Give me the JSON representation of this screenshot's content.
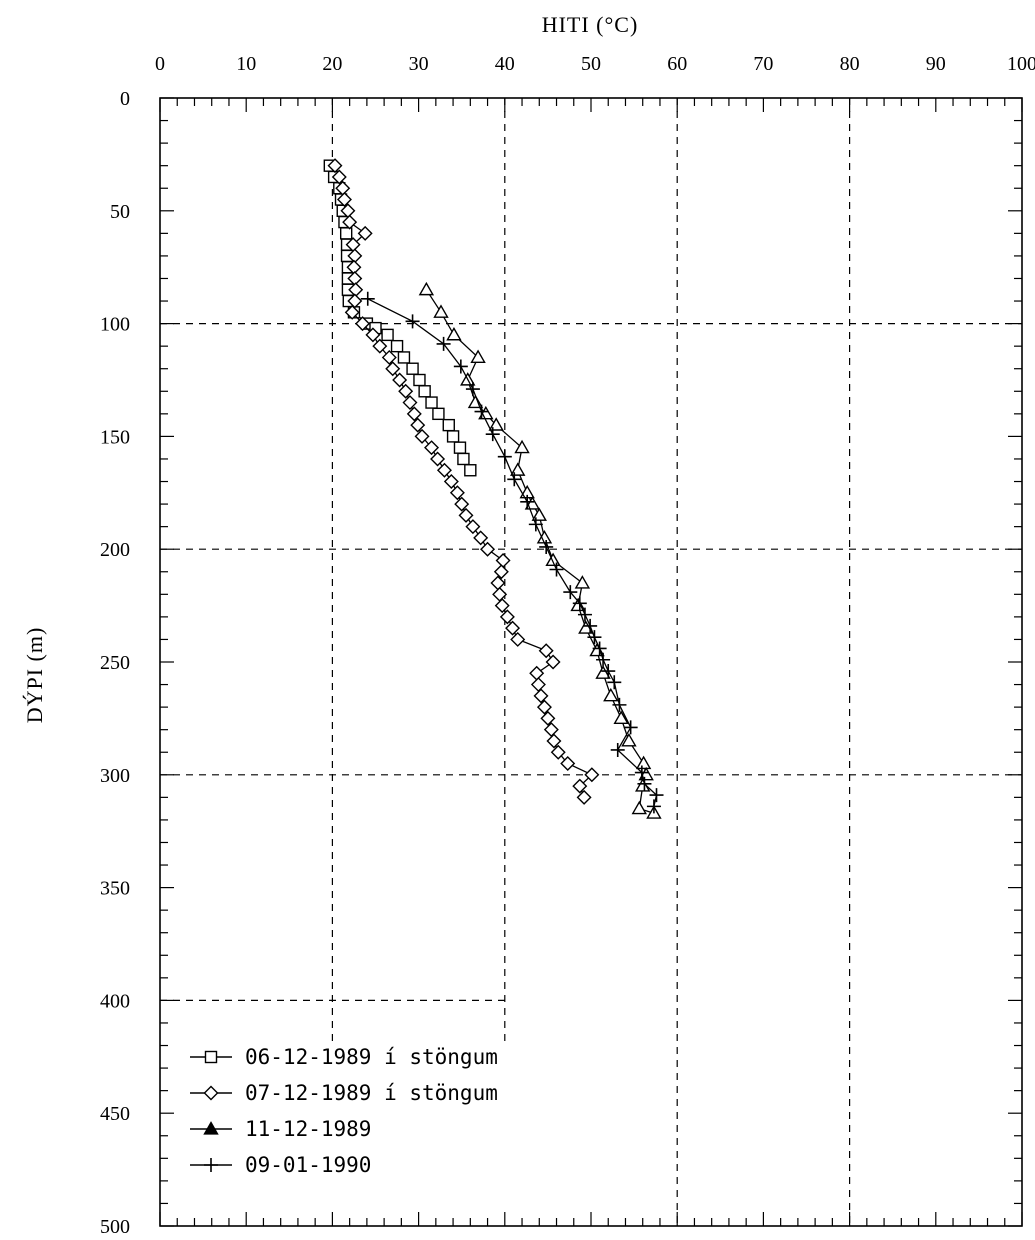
{
  "chart_data": {
    "type": "line",
    "xlabel": "HITI (°C)",
    "ylabel": "DÝPI (m)",
    "xlim": [
      0,
      100
    ],
    "ylim": [
      0,
      500
    ],
    "y_inverted": true,
    "x_axis_position": "top",
    "x_ticks": [
      0,
      10,
      20,
      30,
      40,
      50,
      60,
      70,
      80,
      90,
      100
    ],
    "x_tick_labels": [
      "0",
      "10",
      "20",
      "30",
      "40",
      "50",
      "60",
      "70",
      "80",
      "90",
      "100"
    ],
    "y_ticks": [
      0,
      50,
      100,
      150,
      200,
      250,
      300,
      350,
      400,
      450,
      500
    ],
    "y_tick_labels": [
      "0",
      "50",
      "100",
      "150",
      "200",
      "250",
      "300",
      "350",
      "400",
      "450",
      "500"
    ],
    "grid": "dashed, sparse",
    "legend_position": "bottom-left",
    "series": [
      {
        "name": "06-12-1989 í stöngum",
        "marker": "square",
        "points": [
          [
            19.7,
            30
          ],
          [
            20.2,
            35
          ],
          [
            20.8,
            40
          ],
          [
            21.0,
            45
          ],
          [
            21.2,
            50
          ],
          [
            21.4,
            55
          ],
          [
            21.6,
            60
          ],
          [
            21.7,
            65
          ],
          [
            21.7,
            70
          ],
          [
            21.8,
            75
          ],
          [
            21.8,
            80
          ],
          [
            21.8,
            85
          ],
          [
            21.9,
            90
          ],
          [
            22.5,
            95
          ],
          [
            24.0,
            100
          ],
          [
            25.0,
            102
          ],
          [
            26.4,
            105
          ],
          [
            27.5,
            110
          ],
          [
            28.3,
            115
          ],
          [
            29.3,
            120
          ],
          [
            30.1,
            125
          ],
          [
            30.7,
            130
          ],
          [
            31.5,
            135
          ],
          [
            32.3,
            140
          ],
          [
            33.5,
            145
          ],
          [
            34.0,
            150
          ],
          [
            34.8,
            155
          ],
          [
            35.2,
            160
          ],
          [
            36.0,
            165
          ]
        ]
      },
      {
        "name": "07-12-1989 í stöngum",
        "marker": "diamond",
        "points": [
          [
            20.3,
            30
          ],
          [
            20.8,
            35
          ],
          [
            21.2,
            40
          ],
          [
            21.4,
            45
          ],
          [
            21.8,
            50
          ],
          [
            22.0,
            55
          ],
          [
            23.8,
            60
          ],
          [
            22.4,
            65
          ],
          [
            22.6,
            70
          ],
          [
            22.5,
            75
          ],
          [
            22.6,
            80
          ],
          [
            22.7,
            85
          ],
          [
            22.6,
            90
          ],
          [
            22.3,
            95
          ],
          [
            23.5,
            100
          ],
          [
            24.7,
            105
          ],
          [
            25.5,
            110
          ],
          [
            26.6,
            115
          ],
          [
            27.0,
            120
          ],
          [
            27.8,
            125
          ],
          [
            28.5,
            130
          ],
          [
            29.0,
            135
          ],
          [
            29.5,
            140
          ],
          [
            29.9,
            145
          ],
          [
            30.4,
            150
          ],
          [
            31.5,
            155
          ],
          [
            32.2,
            160
          ],
          [
            33.0,
            165
          ],
          [
            33.8,
            170
          ],
          [
            34.5,
            175
          ],
          [
            35.0,
            180
          ],
          [
            35.5,
            185
          ],
          [
            36.3,
            190
          ],
          [
            37.2,
            195
          ],
          [
            38.0,
            200
          ],
          [
            39.8,
            205
          ],
          [
            39.6,
            210
          ],
          [
            39.2,
            215
          ],
          [
            39.4,
            220
          ],
          [
            39.7,
            225
          ],
          [
            40.3,
            230
          ],
          [
            40.9,
            235
          ],
          [
            41.5,
            240
          ],
          [
            44.8,
            245
          ],
          [
            45.6,
            250
          ],
          [
            43.7,
            255
          ],
          [
            43.9,
            260
          ],
          [
            44.2,
            265
          ],
          [
            44.6,
            270
          ],
          [
            45.0,
            275
          ],
          [
            45.4,
            280
          ],
          [
            45.7,
            285
          ],
          [
            46.2,
            290
          ],
          [
            47.3,
            295
          ],
          [
            50.1,
            300
          ],
          [
            48.7,
            305
          ],
          [
            49.2,
            310
          ]
        ]
      },
      {
        "name": "11-12-1989",
        "marker": "triangle",
        "points": [
          [
            30.9,
            85
          ],
          [
            32.6,
            95
          ],
          [
            34.1,
            105
          ],
          [
            36.9,
            115
          ],
          [
            35.7,
            125
          ],
          [
            36.6,
            135
          ],
          [
            37.8,
            140
          ],
          [
            39.0,
            145
          ],
          [
            42.0,
            155
          ],
          [
            41.5,
            165
          ],
          [
            42.6,
            175
          ],
          [
            43.2,
            180
          ],
          [
            44.0,
            185
          ],
          [
            44.6,
            195
          ],
          [
            45.6,
            205
          ],
          [
            49.0,
            215
          ],
          [
            48.5,
            225
          ],
          [
            49.4,
            235
          ],
          [
            50.7,
            245
          ],
          [
            51.4,
            255
          ],
          [
            52.3,
            265
          ],
          [
            53.5,
            275
          ],
          [
            54.4,
            285
          ],
          [
            56.1,
            295
          ],
          [
            56.4,
            300
          ],
          [
            56.0,
            305
          ],
          [
            55.6,
            315
          ],
          [
            57.3,
            317
          ]
        ]
      },
      {
        "name": "09-01-1990",
        "marker": "plus",
        "points": [
          [
            24.1,
            89
          ],
          [
            29.3,
            99
          ],
          [
            32.9,
            109
          ],
          [
            34.9,
            119
          ],
          [
            36.3,
            129
          ],
          [
            37.3,
            139
          ],
          [
            38.6,
            149
          ],
          [
            40.0,
            159
          ],
          [
            41.1,
            169
          ],
          [
            42.6,
            179
          ],
          [
            43.6,
            189
          ],
          [
            44.8,
            199
          ],
          [
            46.0,
            209
          ],
          [
            47.6,
            219
          ],
          [
            48.7,
            224
          ],
          [
            49.3,
            229
          ],
          [
            49.9,
            234
          ],
          [
            50.4,
            239
          ],
          [
            51.0,
            244
          ],
          [
            51.4,
            249
          ],
          [
            52.0,
            254
          ],
          [
            52.7,
            259
          ],
          [
            53.3,
            269
          ],
          [
            54.6,
            279
          ],
          [
            53.1,
            289
          ],
          [
            55.9,
            299
          ],
          [
            56.2,
            304
          ],
          [
            57.6,
            309
          ],
          [
            57.3,
            314
          ]
        ]
      }
    ]
  }
}
